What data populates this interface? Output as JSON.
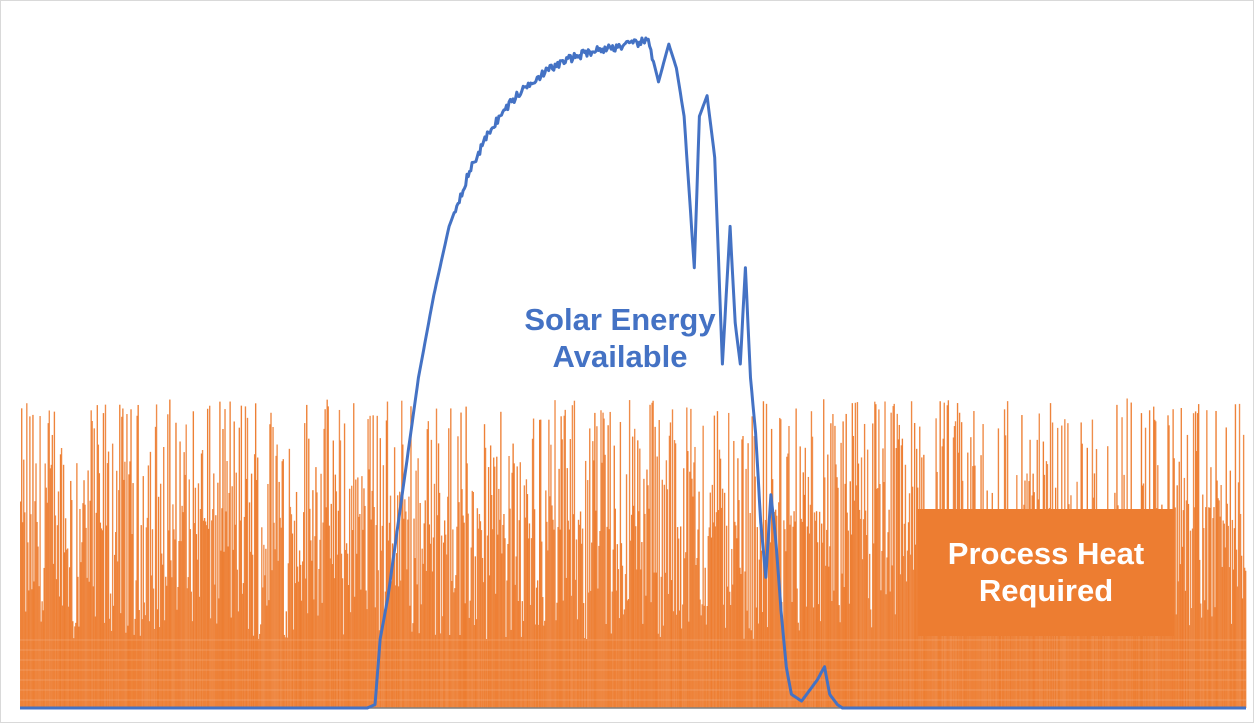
{
  "colors": {
    "solar": "#4472C4",
    "process_heat": "#ED7D31",
    "background": "#FFFFFF",
    "axis": "#7F7F7F"
  },
  "labels": {
    "solar_line1": "Solar Energy",
    "solar_line2": "Available",
    "heat_line1": "Process Heat",
    "heat_line2": "Required"
  },
  "chart_data": {
    "type": "area",
    "x_range": [
      0,
      24
    ],
    "y_range": [
      0,
      100
    ],
    "grid": false,
    "axes_labels_shown": false,
    "series": [
      {
        "name": "Process Heat Required",
        "type": "area",
        "color": "#ED7D31",
        "sample_count": 1200,
        "typical_range": [
          10,
          45
        ],
        "peak_max": 45
      },
      {
        "name": "Solar Energy Available",
        "type": "line",
        "color": "#4472C4",
        "points": [
          [
            0,
            0
          ],
          [
            6.8,
            0
          ],
          [
            6.95,
            0.5
          ],
          [
            7.05,
            10
          ],
          [
            7.2,
            16
          ],
          [
            7.5,
            32
          ],
          [
            7.8,
            48
          ],
          [
            8.1,
            60
          ],
          [
            8.4,
            70
          ],
          [
            8.8,
            78
          ],
          [
            9.2,
            84
          ],
          [
            9.6,
            88
          ],
          [
            10.0,
            91
          ],
          [
            10.4,
            93
          ],
          [
            10.8,
            94.5
          ],
          [
            11.2,
            95.5
          ],
          [
            11.6,
            96
          ],
          [
            12.0,
            96.5
          ],
          [
            12.3,
            97
          ],
          [
            12.5,
            91
          ],
          [
            12.7,
            96.5
          ],
          [
            12.85,
            93
          ],
          [
            13.0,
            86
          ],
          [
            13.1,
            75
          ],
          [
            13.2,
            64
          ],
          [
            13.3,
            86
          ],
          [
            13.45,
            89
          ],
          [
            13.6,
            80
          ],
          [
            13.75,
            50
          ],
          [
            13.9,
            70
          ],
          [
            14.0,
            56
          ],
          [
            14.1,
            50
          ],
          [
            14.2,
            64
          ],
          [
            14.3,
            48
          ],
          [
            14.4,
            40
          ],
          [
            14.5,
            27
          ],
          [
            14.6,
            19
          ],
          [
            14.7,
            31
          ],
          [
            14.8,
            24
          ],
          [
            14.9,
            14
          ],
          [
            15.0,
            6
          ],
          [
            15.1,
            2
          ],
          [
            15.3,
            1
          ],
          [
            15.6,
            4
          ],
          [
            15.75,
            6
          ],
          [
            15.85,
            2
          ],
          [
            16.0,
            0.5
          ],
          [
            16.1,
            0
          ],
          [
            24,
            0
          ]
        ]
      }
    ]
  }
}
